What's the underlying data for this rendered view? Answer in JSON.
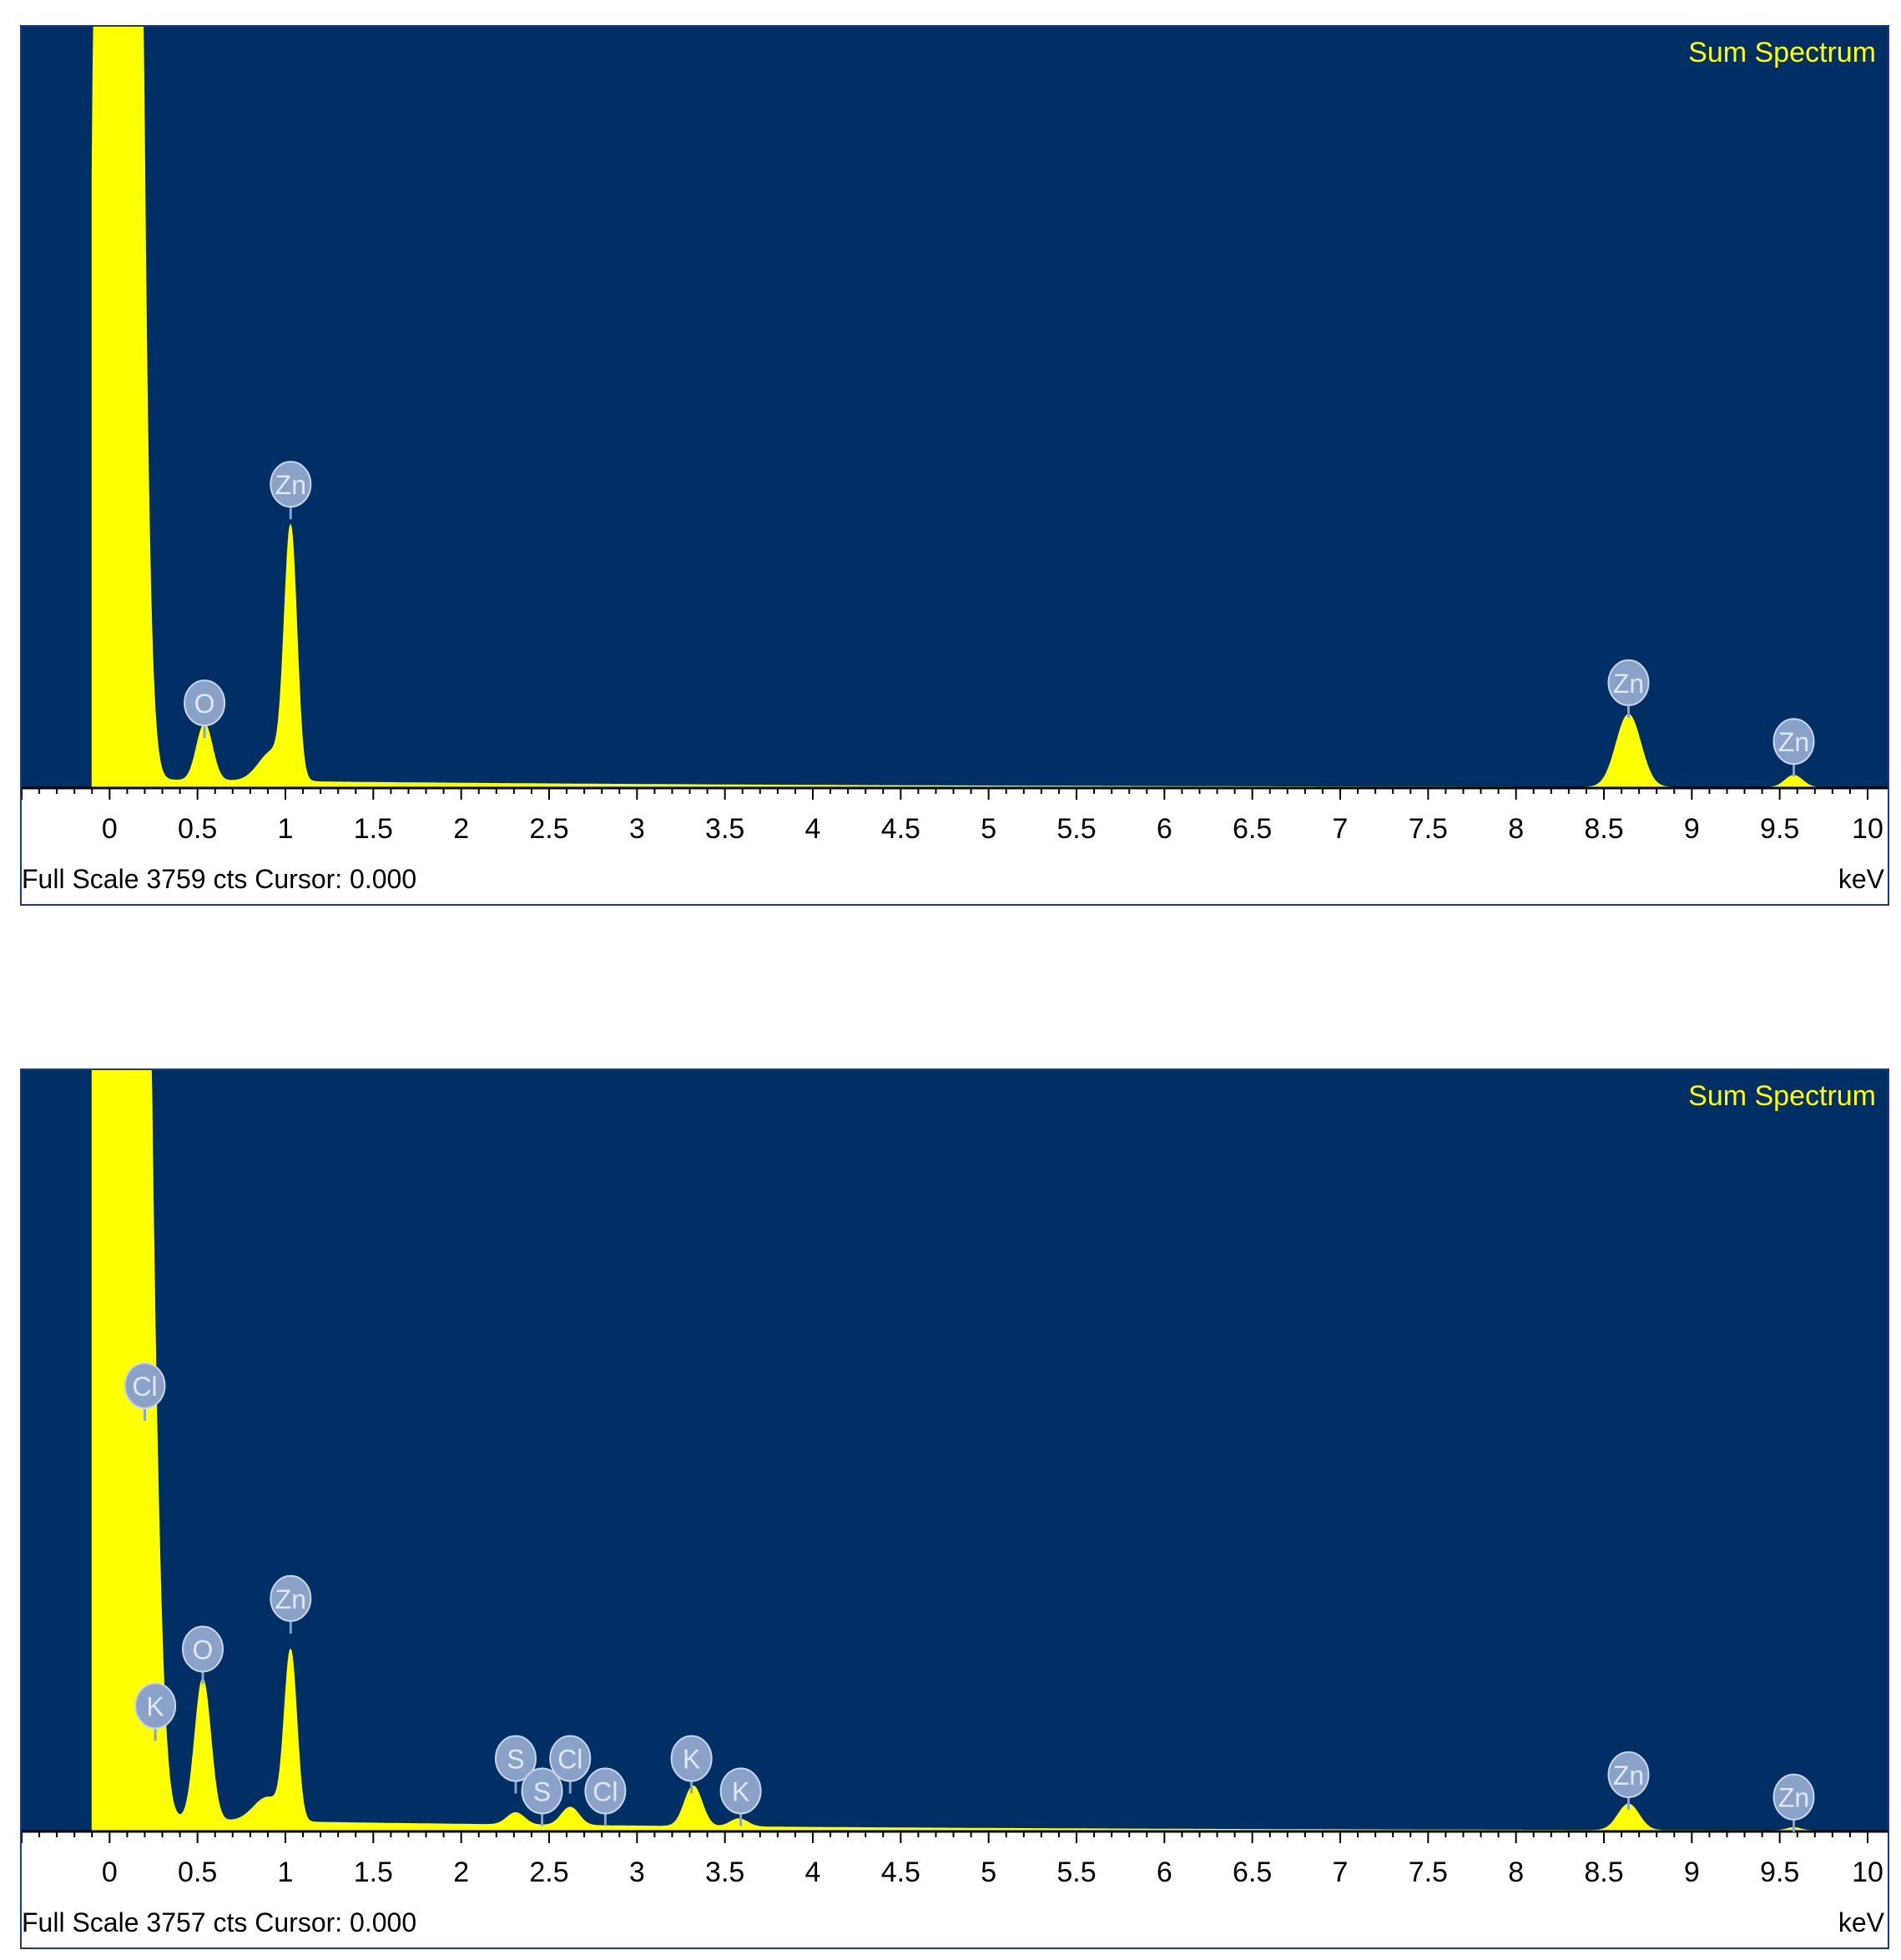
{
  "colors": {
    "plot_bg": "#002f66",
    "spectrum": "#ffff00",
    "marker_fill": "#8aa2c8",
    "marker_text": "#dfe8f5",
    "title": "#ffff00"
  },
  "chart_data": [
    {
      "type": "area",
      "title": "Sum Spectrum",
      "xlabel": "keV",
      "xlim": [
        -0.5,
        10
      ],
      "xticks": [
        "0",
        "0.5",
        "1",
        "1.5",
        "2",
        "2.5",
        "3",
        "3.5",
        "4",
        "4.5",
        "5",
        "5.5",
        "6",
        "6.5",
        "7",
        "7.5",
        "8",
        "8.5",
        "9",
        "9.5",
        "10"
      ],
      "footer": {
        "full_scale": "Full Scale 3759 cts",
        "cursor": "Cursor: 0.000"
      },
      "ymax": 3759,
      "baseline": 40,
      "peaks": [
        {
          "x": 0.05,
          "y": 30000,
          "width": 0.07
        },
        {
          "x": 0.54,
          "y": 280,
          "width": 0.045
        },
        {
          "x": 1.03,
          "y": 1200,
          "width": 0.035
        },
        {
          "x": 0.93,
          "y": 150,
          "width": 0.08
        },
        {
          "x": 8.64,
          "y": 360,
          "width": 0.07
        },
        {
          "x": 9.58,
          "y": 60,
          "width": 0.05
        }
      ],
      "markers": [
        {
          "label": "O",
          "x": 0.54,
          "y": 420
        },
        {
          "label": "Zn",
          "x": 1.03,
          "y": 1500
        },
        {
          "label": "Zn",
          "x": 8.64,
          "y": 520
        },
        {
          "label": "Zn",
          "x": 9.58,
          "y": 230
        }
      ]
    },
    {
      "type": "area",
      "title": "Sum Spectrum",
      "xlabel": "keV",
      "xlim": [
        -0.5,
        10
      ],
      "xticks": [
        "0",
        "0.5",
        "1",
        "1.5",
        "2",
        "2.5",
        "3",
        "3.5",
        "4",
        "4.5",
        "5",
        "5.5",
        "6",
        "6.5",
        "7",
        "7.5",
        "8",
        "8.5",
        "9",
        "9.5",
        "10"
      ],
      "footer": {
        "full_scale": "Full Scale 3757 cts",
        "cursor": "Cursor: 0.000"
      },
      "ymax": 3757,
      "baseline": 60,
      "peaks": [
        {
          "x": 0.05,
          "y": 30000,
          "width": 0.09
        },
        {
          "x": 0.26,
          "y": 420,
          "width": 0.04
        },
        {
          "x": 0.53,
          "y": 700,
          "width": 0.045
        },
        {
          "x": 1.03,
          "y": 820,
          "width": 0.035
        },
        {
          "x": 0.9,
          "y": 120,
          "width": 0.08
        },
        {
          "x": 2.31,
          "y": 60,
          "width": 0.05
        },
        {
          "x": 2.62,
          "y": 90,
          "width": 0.05
        },
        {
          "x": 3.32,
          "y": 200,
          "width": 0.05
        },
        {
          "x": 3.58,
          "y": 40,
          "width": 0.05
        },
        {
          "x": 8.64,
          "y": 130,
          "width": 0.06
        },
        {
          "x": 9.58,
          "y": 15,
          "width": 0.04
        }
      ],
      "markers": [
        {
          "label": "Cl",
          "x": 0.2,
          "y": 2200
        },
        {
          "label": "K",
          "x": 0.26,
          "y": 620
        },
        {
          "label": "O",
          "x": 0.53,
          "y": 900
        },
        {
          "label": "Zn",
          "x": 1.03,
          "y": 1150
        },
        {
          "label": "S",
          "x": 2.31,
          "y": 360
        },
        {
          "label": "S",
          "x": 2.46,
          "y": 200
        },
        {
          "label": "Cl",
          "x": 2.62,
          "y": 360
        },
        {
          "label": "Cl",
          "x": 2.82,
          "y": 200
        },
        {
          "label": "K",
          "x": 3.31,
          "y": 360
        },
        {
          "label": "K",
          "x": 3.59,
          "y": 200
        },
        {
          "label": "Zn",
          "x": 8.64,
          "y": 280
        },
        {
          "label": "Zn",
          "x": 9.58,
          "y": 170
        }
      ]
    }
  ]
}
